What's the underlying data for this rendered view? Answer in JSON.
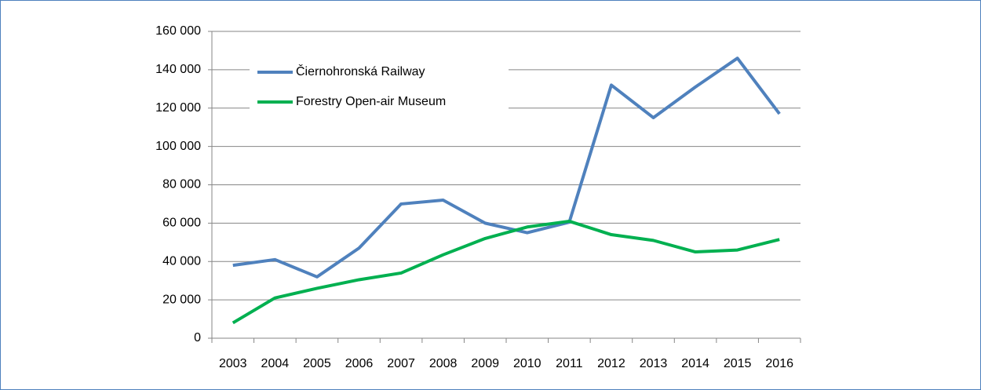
{
  "chart_data": {
    "type": "line",
    "categories": [
      "2003",
      "2004",
      "2005",
      "2006",
      "2007",
      "2008",
      "2009",
      "2010",
      "2011",
      "2012",
      "2013",
      "2014",
      "2015",
      "2016"
    ],
    "series": [
      {
        "name": "Čiernohronská Railway",
        "color": "#4f81bd",
        "values": [
          38000,
          41000,
          32000,
          47000,
          70000,
          72000,
          60000,
          55000,
          60500,
          132000,
          115000,
          131000,
          146000,
          117000
        ]
      },
      {
        "name": "Forestry Open-air Museum",
        "color": "#00b050",
        "values": [
          8000,
          21000,
          26000,
          30500,
          34000,
          43500,
          52000,
          58000,
          61000,
          54000,
          51000,
          45000,
          46000,
          51500
        ]
      }
    ],
    "ylim": [
      0,
      160000
    ],
    "yticks": [
      0,
      {
        "value": 20000,
        "label": "20 000"
      },
      {
        "value": 40000,
        "label": "40 000"
      },
      {
        "value": 60000,
        "label": "60 000"
      },
      {
        "value": 80000,
        "label": "80 000"
      },
      {
        "value": 100000,
        "label": "100 000"
      },
      {
        "value": 120000,
        "label": "120 000"
      },
      {
        "value": 140000,
        "label": "140 000"
      },
      {
        "value": 160000,
        "label": "160 000"
      }
    ],
    "grid": true,
    "legend": "top-left"
  }
}
